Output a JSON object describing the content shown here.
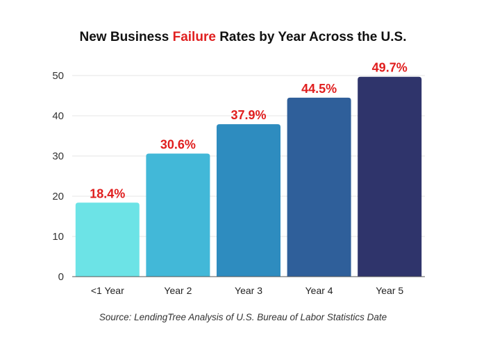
{
  "chart_data": {
    "type": "bar",
    "title_parts": [
      "New Business ",
      "Failure",
      " Rates by Year Across the U.S."
    ],
    "title_highlight_color": "#e02020",
    "categories": [
      "<1 Year",
      "Year 2",
      "Year 3",
      "Year 4",
      "Year 5"
    ],
    "values": [
      18.4,
      30.6,
      37.9,
      44.5,
      49.7
    ],
    "data_labels": [
      "18.4%",
      "30.6%",
      "37.9%",
      "44.5%",
      "49.7%"
    ],
    "colors": [
      "#6ce3e6",
      "#42b8d8",
      "#2e8cbf",
      "#2f5f9a",
      "#2f346b"
    ],
    "yticks": [
      0,
      10,
      20,
      30,
      40,
      50
    ],
    "ylim": [
      0,
      50
    ],
    "grid": true,
    "xlabel": "",
    "ylabel": "",
    "source": "Source: LendingTree Analysis of U.S. Bureau of Labor Statistics Date"
  }
}
